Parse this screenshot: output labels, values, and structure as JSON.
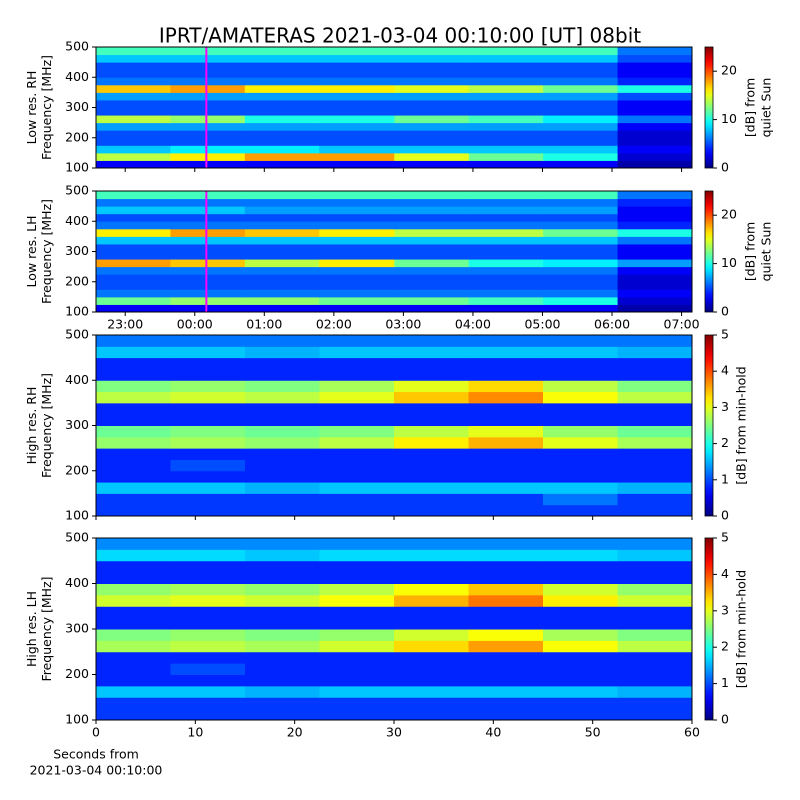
{
  "figure_title": "IPRT/AMATERAS 2021-03-04 00:10:00 [UT]   08bit",
  "chart_data": [
    {
      "type": "heatmap",
      "ylabel_lines": [
        "Low res. RH",
        "Frequency [MHz]"
      ],
      "clabel_lines": [
        "[dB] from",
        "quiet Sun"
      ],
      "xlim": [
        -1.42,
        7.15
      ],
      "xticks": [
        -1,
        0,
        1,
        2,
        3,
        4,
        5,
        6,
        7
      ],
      "show_xtick_labels": false,
      "ylim": [
        100,
        500
      ],
      "yticks": [
        100,
        200,
        300,
        400,
        500
      ],
      "clim": [
        0,
        25
      ],
      "cticks": [
        0,
        10,
        20
      ],
      "colormap": "jet",
      "marker_x": 0.1667,
      "marker_color": "#ff00ff",
      "xbins": [
        -1.42,
        -0.35,
        0.72,
        1.79,
        2.87,
        3.94,
        5.01,
        6.08,
        7.15
      ],
      "ybins": [
        100,
        125,
        150,
        175,
        200,
        225,
        250,
        275,
        300,
        325,
        350,
        375,
        400,
        425,
        450,
        475,
        500
      ],
      "z": [
        [
          3,
          3,
          3,
          3,
          3,
          3,
          3,
          1
        ],
        [
          14,
          16,
          18,
          18,
          15,
          12,
          10,
          2
        ],
        [
          8,
          9,
          9,
          8,
          8,
          8,
          8,
          3
        ],
        [
          5,
          5,
          5,
          5,
          5,
          5,
          5,
          2
        ],
        [
          5,
          5,
          5,
          5,
          5,
          5,
          5,
          2
        ],
        [
          7,
          7,
          7,
          7,
          7,
          7,
          7,
          3
        ],
        [
          14,
          13,
          10,
          10,
          12,
          11,
          9,
          6
        ],
        [
          5,
          5,
          5,
          5,
          5,
          5,
          5,
          3
        ],
        [
          5,
          5,
          5,
          5,
          5,
          5,
          5,
          3
        ],
        [
          7,
          7,
          7,
          7,
          7,
          7,
          7,
          5
        ],
        [
          17,
          18,
          16,
          16,
          15,
          14,
          12,
          10
        ],
        [
          6,
          6,
          6,
          6,
          6,
          6,
          6,
          4
        ],
        [
          5,
          5,
          5,
          5,
          5,
          5,
          5,
          3
        ],
        [
          5,
          5,
          5,
          5,
          5,
          5,
          5,
          3
        ],
        [
          8,
          8,
          8,
          8,
          8,
          8,
          8,
          5
        ],
        [
          11,
          11,
          11,
          11,
          11,
          11,
          11,
          6
        ]
      ]
    },
    {
      "type": "heatmap",
      "ylabel_lines": [
        "Low res. LH",
        "Frequency [MHz]"
      ],
      "clabel_lines": [
        "[dB] from",
        "quiet Sun"
      ],
      "xlim": [
        -1.42,
        7.15
      ],
      "xticks": [
        {
          "value": -1,
          "label": "23:00"
        },
        {
          "value": 0,
          "label": "00:00"
        },
        {
          "value": 1,
          "label": "01:00"
        },
        {
          "value": 2,
          "label": "02:00"
        },
        {
          "value": 3,
          "label": "03:00"
        },
        {
          "value": 4,
          "label": "04:00"
        },
        {
          "value": 5,
          "label": "05:00"
        },
        {
          "value": 6,
          "label": "06:00"
        },
        {
          "value": 7,
          "label": "07:00"
        }
      ],
      "show_xtick_labels": true,
      "ylim": [
        100,
        500
      ],
      "yticks": [
        100,
        200,
        300,
        400,
        500
      ],
      "clim": [
        0,
        25
      ],
      "cticks": [
        0,
        10,
        20
      ],
      "colormap": "jet",
      "marker_x": 0.1667,
      "marker_color": "#ff00ff",
      "xbins": [
        -1.42,
        -0.35,
        0.72,
        1.79,
        2.87,
        3.94,
        5.01,
        6.08,
        7.15
      ],
      "ybins": [
        100,
        125,
        150,
        175,
        200,
        225,
        250,
        275,
        300,
        325,
        350,
        375,
        400,
        425,
        450,
        475,
        500
      ],
      "z": [
        [
          3,
          3,
          3,
          3,
          3,
          3,
          3,
          1
        ],
        [
          12,
          13,
          13,
          12,
          12,
          11,
          10,
          2
        ],
        [
          6,
          6,
          6,
          6,
          6,
          6,
          6,
          3
        ],
        [
          5,
          5,
          5,
          5,
          5,
          5,
          5,
          2
        ],
        [
          5,
          5,
          5,
          5,
          5,
          5,
          5,
          2
        ],
        [
          6,
          6,
          6,
          6,
          6,
          6,
          6,
          3
        ],
        [
          18,
          17,
          14,
          16,
          12,
          10,
          9,
          7
        ],
        [
          5,
          5,
          5,
          5,
          5,
          5,
          5,
          3
        ],
        [
          5,
          5,
          5,
          5,
          5,
          5,
          5,
          3
        ],
        [
          8,
          8,
          8,
          8,
          8,
          8,
          8,
          6
        ],
        [
          16,
          18,
          17,
          16,
          14,
          14,
          12,
          10
        ],
        [
          6,
          6,
          6,
          6,
          6,
          6,
          6,
          4
        ],
        [
          5,
          5,
          5,
          5,
          5,
          5,
          5,
          3
        ],
        [
          8,
          8,
          7,
          7,
          7,
          7,
          7,
          3
        ],
        [
          6,
          6,
          6,
          6,
          6,
          6,
          6,
          4
        ],
        [
          11,
          11,
          11,
          11,
          11,
          11,
          11,
          6
        ]
      ]
    },
    {
      "type": "heatmap",
      "ylabel_lines": [
        "High res. RH",
        "Frequency [MHz]"
      ],
      "clabel_lines": [
        "[dB] from min-hold"
      ],
      "xlim": [
        0,
        60
      ],
      "xticks": [
        0,
        10,
        20,
        30,
        40,
        50,
        60
      ],
      "show_xtick_labels": false,
      "ylim": [
        100,
        500
      ],
      "yticks": [
        100,
        200,
        300,
        400,
        500
      ],
      "clim": [
        0,
        5
      ],
      "cticks": [
        0,
        1,
        2,
        3,
        4,
        5
      ],
      "colormap": "jet",
      "xbins": [
        0,
        7.5,
        15,
        22.5,
        30,
        37.5,
        45,
        52.5,
        60
      ],
      "ybins": [
        100,
        125,
        150,
        175,
        200,
        225,
        250,
        275,
        300,
        325,
        350,
        375,
        400,
        425,
        450,
        475,
        500
      ],
      "z": [
        [
          0.9,
          0.9,
          0.9,
          0.9,
          0.9,
          0.9,
          0.9,
          0.9
        ],
        [
          0.9,
          0.9,
          0.9,
          0.9,
          0.9,
          0.9,
          1.2,
          0.9
        ],
        [
          1.6,
          1.6,
          1.5,
          1.6,
          1.6,
          1.6,
          1.6,
          1.5
        ],
        [
          0.8,
          0.8,
          0.8,
          0.8,
          0.8,
          0.8,
          0.8,
          0.8
        ],
        [
          0.8,
          1.0,
          0.8,
          0.8,
          0.8,
          0.8,
          0.8,
          0.8
        ],
        [
          0.8,
          0.8,
          0.8,
          0.8,
          0.8,
          0.8,
          0.8,
          0.8
        ],
        [
          2.6,
          2.7,
          2.6,
          2.8,
          3.2,
          3.5,
          3.0,
          2.7
        ],
        [
          2.4,
          2.5,
          2.4,
          2.5,
          2.8,
          3.0,
          2.6,
          2.4
        ],
        [
          0.8,
          0.8,
          0.8,
          0.8,
          0.8,
          0.8,
          0.8,
          0.8
        ],
        [
          0.8,
          0.8,
          0.8,
          0.8,
          0.8,
          0.8,
          0.8,
          0.8
        ],
        [
          2.8,
          2.9,
          2.8,
          3.0,
          3.4,
          3.7,
          3.1,
          2.8
        ],
        [
          2.5,
          2.6,
          2.5,
          2.7,
          3.0,
          3.3,
          2.8,
          2.5
        ],
        [
          0.8,
          0.8,
          0.8,
          0.8,
          0.8,
          0.8,
          0.8,
          0.8
        ],
        [
          0.8,
          0.8,
          0.8,
          0.8,
          0.8,
          0.8,
          0.8,
          0.8
        ],
        [
          1.6,
          1.6,
          1.5,
          1.6,
          1.6,
          1.6,
          1.6,
          1.5
        ],
        [
          1.2,
          1.2,
          1.2,
          1.2,
          1.2,
          1.2,
          1.2,
          1.2
        ]
      ]
    },
    {
      "type": "heatmap",
      "ylabel_lines": [
        "High res. LH",
        "Frequency [MHz]"
      ],
      "clabel_lines": [
        "[dB] from min-hold"
      ],
      "xlim": [
        0,
        60
      ],
      "xticks": [
        0,
        10,
        20,
        30,
        40,
        50,
        60
      ],
      "show_xtick_labels": true,
      "xlabel_lines": [
        "Seconds from",
        "2021-03-04 00:10:00"
      ],
      "ylim": [
        100,
        500
      ],
      "yticks": [
        100,
        200,
        300,
        400,
        500
      ],
      "clim": [
        0,
        5
      ],
      "cticks": [
        0,
        1,
        2,
        3,
        4,
        5
      ],
      "colormap": "jet",
      "xbins": [
        0,
        7.5,
        15,
        22.5,
        30,
        37.5,
        45,
        52.5,
        60
      ],
      "ybins": [
        100,
        125,
        150,
        175,
        200,
        225,
        250,
        275,
        300,
        325,
        350,
        375,
        400,
        425,
        450,
        475,
        500
      ],
      "z": [
        [
          0.9,
          0.9,
          0.9,
          0.9,
          0.9,
          0.9,
          0.9,
          0.9
        ],
        [
          0.9,
          0.9,
          0.9,
          0.9,
          0.9,
          0.9,
          0.9,
          0.9
        ],
        [
          1.6,
          1.6,
          1.5,
          1.6,
          1.6,
          1.6,
          1.6,
          1.5
        ],
        [
          0.8,
          0.8,
          0.8,
          0.8,
          0.8,
          0.8,
          0.8,
          0.8
        ],
        [
          0.8,
          1.0,
          0.8,
          0.8,
          0.8,
          0.8,
          0.8,
          0.8
        ],
        [
          0.8,
          0.8,
          0.8,
          0.8,
          0.8,
          0.8,
          0.8,
          0.8
        ],
        [
          2.7,
          2.8,
          2.7,
          2.9,
          3.3,
          3.6,
          3.1,
          2.8
        ],
        [
          2.5,
          2.6,
          2.5,
          2.6,
          2.9,
          3.1,
          2.7,
          2.5
        ],
        [
          0.8,
          0.8,
          0.8,
          0.8,
          0.8,
          0.8,
          0.8,
          0.8
        ],
        [
          0.8,
          0.8,
          0.8,
          0.8,
          0.8,
          0.8,
          0.8,
          0.8
        ],
        [
          2.9,
          3.0,
          2.9,
          3.1,
          3.5,
          3.8,
          3.2,
          2.9
        ],
        [
          2.6,
          2.7,
          2.6,
          2.8,
          3.1,
          3.4,
          2.9,
          2.6
        ],
        [
          0.8,
          0.8,
          0.8,
          0.8,
          0.8,
          0.8,
          0.8,
          0.8
        ],
        [
          0.8,
          0.8,
          0.8,
          0.8,
          0.8,
          0.8,
          0.8,
          0.8
        ],
        [
          1.7,
          1.7,
          1.6,
          1.7,
          1.7,
          1.7,
          1.7,
          1.6
        ],
        [
          1.3,
          1.3,
          1.3,
          1.3,
          1.3,
          1.3,
          1.3,
          1.3
        ]
      ]
    }
  ]
}
